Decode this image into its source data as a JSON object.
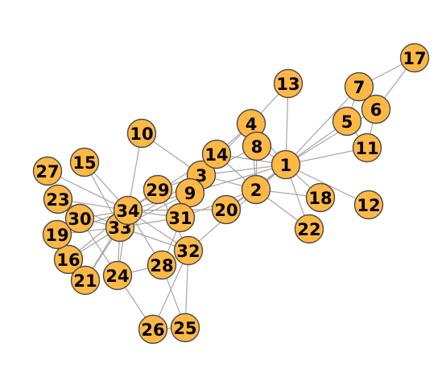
{
  "graph": {
    "node_color": "#ffb845",
    "edge_color": "#a6a6a6",
    "nodes": [
      {
        "id": "1"
      },
      {
        "id": "2"
      },
      {
        "id": "3"
      },
      {
        "id": "4"
      },
      {
        "id": "5"
      },
      {
        "id": "6"
      },
      {
        "id": "7"
      },
      {
        "id": "8"
      },
      {
        "id": "9"
      },
      {
        "id": "10"
      },
      {
        "id": "11"
      },
      {
        "id": "12"
      },
      {
        "id": "13"
      },
      {
        "id": "14"
      },
      {
        "id": "15"
      },
      {
        "id": "16"
      },
      {
        "id": "17"
      },
      {
        "id": "18"
      },
      {
        "id": "19"
      },
      {
        "id": "20"
      },
      {
        "id": "21"
      },
      {
        "id": "22"
      },
      {
        "id": "23"
      },
      {
        "id": "24"
      },
      {
        "id": "25"
      },
      {
        "id": "26"
      },
      {
        "id": "27"
      },
      {
        "id": "28"
      },
      {
        "id": "29"
      },
      {
        "id": "30"
      },
      {
        "id": "31"
      },
      {
        "id": "32"
      },
      {
        "id": "33"
      },
      {
        "id": "34"
      }
    ],
    "edges": [
      [
        "1",
        "2"
      ],
      [
        "1",
        "3"
      ],
      [
        "1",
        "4"
      ],
      [
        "1",
        "5"
      ],
      [
        "1",
        "6"
      ],
      [
        "1",
        "7"
      ],
      [
        "1",
        "8"
      ],
      [
        "1",
        "9"
      ],
      [
        "1",
        "11"
      ],
      [
        "1",
        "12"
      ],
      [
        "1",
        "13"
      ],
      [
        "1",
        "14"
      ],
      [
        "1",
        "18"
      ],
      [
        "1",
        "20"
      ],
      [
        "1",
        "22"
      ],
      [
        "1",
        "32"
      ],
      [
        "2",
        "3"
      ],
      [
        "2",
        "4"
      ],
      [
        "2",
        "8"
      ],
      [
        "2",
        "14"
      ],
      [
        "2",
        "18"
      ],
      [
        "2",
        "20"
      ],
      [
        "2",
        "22"
      ],
      [
        "2",
        "31"
      ],
      [
        "3",
        "4"
      ],
      [
        "3",
        "8"
      ],
      [
        "3",
        "9"
      ],
      [
        "3",
        "10"
      ],
      [
        "3",
        "14"
      ],
      [
        "3",
        "28"
      ],
      [
        "3",
        "29"
      ],
      [
        "3",
        "33"
      ],
      [
        "4",
        "8"
      ],
      [
        "4",
        "13"
      ],
      [
        "4",
        "14"
      ],
      [
        "5",
        "7"
      ],
      [
        "5",
        "11"
      ],
      [
        "6",
        "7"
      ],
      [
        "6",
        "11"
      ],
      [
        "6",
        "17"
      ],
      [
        "7",
        "17"
      ],
      [
        "9",
        "31"
      ],
      [
        "9",
        "33"
      ],
      [
        "9",
        "34"
      ],
      [
        "10",
        "34"
      ],
      [
        "14",
        "34"
      ],
      [
        "15",
        "33"
      ],
      [
        "15",
        "34"
      ],
      [
        "16",
        "33"
      ],
      [
        "16",
        "34"
      ],
      [
        "19",
        "33"
      ],
      [
        "19",
        "34"
      ],
      [
        "20",
        "34"
      ],
      [
        "21",
        "33"
      ],
      [
        "21",
        "34"
      ],
      [
        "23",
        "33"
      ],
      [
        "23",
        "34"
      ],
      [
        "24",
        "26"
      ],
      [
        "24",
        "28"
      ],
      [
        "24",
        "30"
      ],
      [
        "24",
        "33"
      ],
      [
        "24",
        "34"
      ],
      [
        "25",
        "26"
      ],
      [
        "25",
        "28"
      ],
      [
        "25",
        "32"
      ],
      [
        "26",
        "32"
      ],
      [
        "27",
        "30"
      ],
      [
        "27",
        "34"
      ],
      [
        "28",
        "34"
      ],
      [
        "29",
        "32"
      ],
      [
        "29",
        "34"
      ],
      [
        "30",
        "33"
      ],
      [
        "30",
        "34"
      ],
      [
        "31",
        "33"
      ],
      [
        "31",
        "34"
      ],
      [
        "32",
        "33"
      ],
      [
        "32",
        "34"
      ],
      [
        "33",
        "34"
      ]
    ]
  }
}
